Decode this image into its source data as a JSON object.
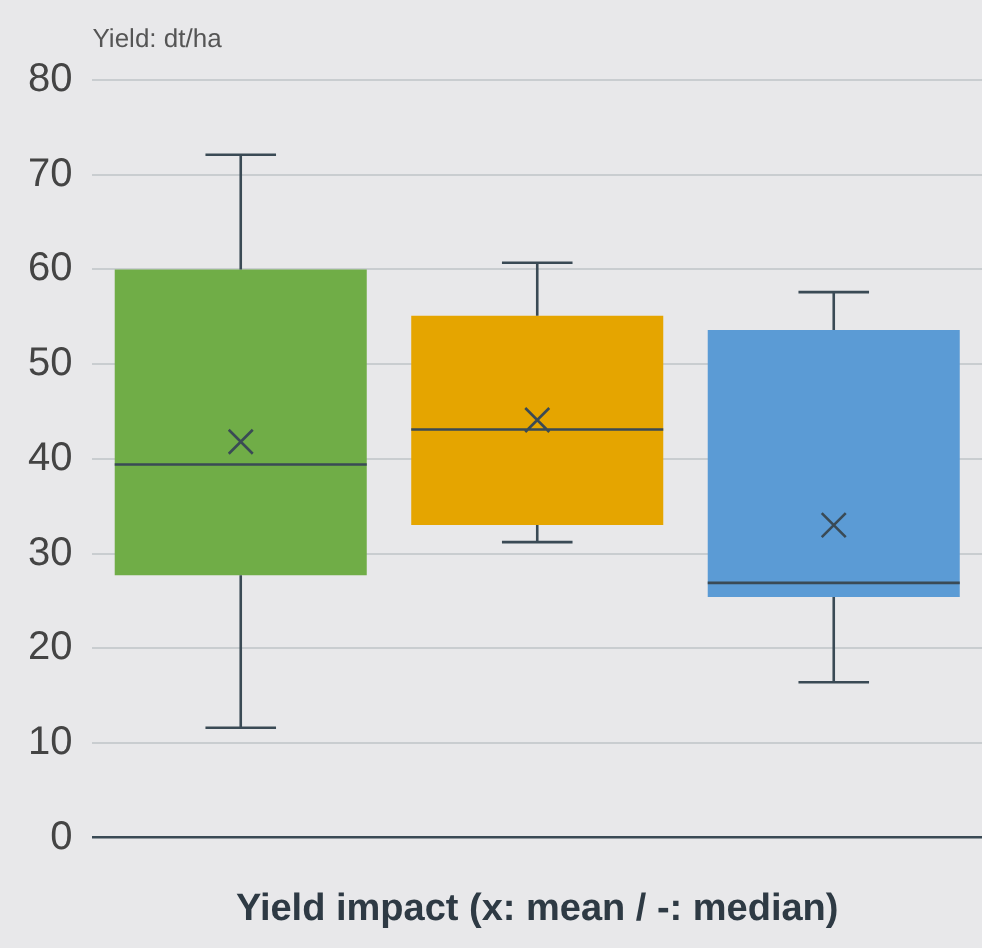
{
  "chart_data": {
    "type": "box",
    "ylabel": "Yield: dt/ha",
    "xlabel": "Yield impact (x: mean / -: median)",
    "categories": [
      null,
      null,
      null
    ],
    "colors": [
      "#70ad47",
      "#e5a500",
      "#5b9bd5"
    ],
    "boxes": [
      {
        "low": 11.6,
        "q1": 27.7,
        "median": 39.4,
        "q3": 60.0,
        "high": 72.1,
        "mean": 41.8
      },
      {
        "low": 31.2,
        "q1": 33.0,
        "median": 43.1,
        "q3": 55.1,
        "high": 60.7,
        "mean": 44.1
      },
      {
        "low": 16.4,
        "q1": 25.4,
        "median": 26.9,
        "q3": 53.6,
        "high": 57.6,
        "mean": 33.0
      }
    ],
    "ylim": [
      0,
      80
    ],
    "yticks": [
      0,
      10,
      20,
      30,
      40,
      50,
      60,
      70,
      80
    ],
    "grid": "y",
    "legend": false
  }
}
